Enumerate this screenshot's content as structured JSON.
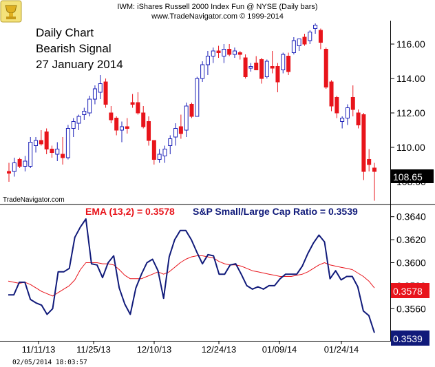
{
  "header": {
    "line1": "IWM:  iShares Russell 2000 Index Fun @ NYSE  (Daily bars)",
    "line2": "www.TradeNavigator.com © 1999-2014"
  },
  "notes": [
    "Daily Chart",
    "Bearish Signal",
    "27 January 2014"
  ],
  "watermark": "TradeNavigator.com",
  "timestamp": "02/05/2014  18:03:57",
  "colors": {
    "up": "#1a1fb8",
    "down": "#e8141b",
    "ratio_line": "#101a7a",
    "ema_line": "#e8141b"
  },
  "chart_data": [
    {
      "type": "candlestick",
      "title": "IWM:  iShares Russell 2000 Index Fun @ NYSE  (Daily bars)",
      "ylim": [
        106.8,
        117.2
      ],
      "yticks": [
        "116.00",
        "114.00",
        "112.00",
        "110.00",
        "108.00"
      ],
      "last_value": "108.65",
      "bars": [
        {
          "o": 108.6,
          "h": 109.1,
          "l": 108.0,
          "c": 108.5
        },
        {
          "o": 108.6,
          "h": 109.4,
          "l": 108.3,
          "c": 109.1
        },
        {
          "o": 109.3,
          "h": 109.4,
          "l": 108.8,
          "c": 108.9
        },
        {
          "o": 108.9,
          "h": 109.5,
          "l": 108.6,
          "c": 109.2
        },
        {
          "o": 108.9,
          "h": 110.6,
          "l": 108.8,
          "c": 110.3
        },
        {
          "o": 110.1,
          "h": 110.6,
          "l": 109.7,
          "c": 110.4
        },
        {
          "o": 110.4,
          "h": 111.0,
          "l": 110.1,
          "c": 110.2
        },
        {
          "o": 110.9,
          "h": 111.1,
          "l": 109.6,
          "c": 109.9
        },
        {
          "o": 109.9,
          "h": 110.1,
          "l": 109.4,
          "c": 109.7
        },
        {
          "o": 109.6,
          "h": 110.3,
          "l": 109.2,
          "c": 109.9
        },
        {
          "o": 109.6,
          "h": 110.6,
          "l": 109.0,
          "c": 109.4
        },
        {
          "o": 109.4,
          "h": 111.3,
          "l": 109.3,
          "c": 111.1
        },
        {
          "o": 111.1,
          "h": 111.7,
          "l": 110.6,
          "c": 111.5
        },
        {
          "o": 111.4,
          "h": 111.9,
          "l": 111.0,
          "c": 111.8
        },
        {
          "o": 111.9,
          "h": 112.3,
          "l": 111.6,
          "c": 112.1
        },
        {
          "o": 112.0,
          "h": 113.0,
          "l": 111.8,
          "c": 112.8
        },
        {
          "o": 112.8,
          "h": 113.6,
          "l": 112.5,
          "c": 113.4
        },
        {
          "o": 113.2,
          "h": 114.2,
          "l": 112.8,
          "c": 113.7
        },
        {
          "o": 113.8,
          "h": 114.0,
          "l": 112.3,
          "c": 112.5
        },
        {
          "o": 112.0,
          "h": 112.4,
          "l": 111.4,
          "c": 111.6
        },
        {
          "o": 111.7,
          "h": 111.8,
          "l": 110.7,
          "c": 111.0
        },
        {
          "o": 111.0,
          "h": 111.5,
          "l": 110.3,
          "c": 111.2
        },
        {
          "o": 111.2,
          "h": 111.7,
          "l": 110.8,
          "c": 111.1
        },
        {
          "o": 112.6,
          "h": 113.1,
          "l": 112.3,
          "c": 112.5
        },
        {
          "o": 112.6,
          "h": 113.2,
          "l": 111.9,
          "c": 112.0
        },
        {
          "o": 112.0,
          "h": 112.4,
          "l": 111.1,
          "c": 111.2
        },
        {
          "o": 111.5,
          "h": 111.8,
          "l": 110.1,
          "c": 110.4
        },
        {
          "o": 110.4,
          "h": 110.4,
          "l": 109.0,
          "c": 109.3
        },
        {
          "o": 109.3,
          "h": 109.9,
          "l": 109.1,
          "c": 109.6
        },
        {
          "o": 109.5,
          "h": 110.1,
          "l": 109.1,
          "c": 109.9
        },
        {
          "o": 110.1,
          "h": 110.7,
          "l": 109.6,
          "c": 110.5
        },
        {
          "o": 110.6,
          "h": 111.4,
          "l": 110.1,
          "c": 111.1
        },
        {
          "o": 111.2,
          "h": 111.9,
          "l": 110.5,
          "c": 110.8
        },
        {
          "o": 111.0,
          "h": 112.6,
          "l": 110.6,
          "c": 112.4
        },
        {
          "o": 112.5,
          "h": 112.6,
          "l": 111.7,
          "c": 111.8
        },
        {
          "o": 111.8,
          "h": 114.1,
          "l": 111.8,
          "c": 114.0
        },
        {
          "o": 114.0,
          "h": 115.0,
          "l": 113.8,
          "c": 114.8
        },
        {
          "o": 114.8,
          "h": 115.6,
          "l": 114.2,
          "c": 115.3
        },
        {
          "o": 115.3,
          "h": 115.8,
          "l": 114.9,
          "c": 115.6
        },
        {
          "o": 115.6,
          "h": 115.9,
          "l": 115.2,
          "c": 115.5
        },
        {
          "o": 115.3,
          "h": 116.0,
          "l": 114.9,
          "c": 115.7
        },
        {
          "o": 115.7,
          "h": 116.0,
          "l": 115.3,
          "c": 115.4
        },
        {
          "o": 115.4,
          "h": 115.8,
          "l": 115.2,
          "c": 115.6
        },
        {
          "o": 115.5,
          "h": 115.6,
          "l": 115.1,
          "c": 115.4
        },
        {
          "o": 115.2,
          "h": 115.4,
          "l": 114.0,
          "c": 114.1
        },
        {
          "o": 114.6,
          "h": 114.9,
          "l": 114.4,
          "c": 114.7
        },
        {
          "o": 114.9,
          "h": 115.3,
          "l": 114.5,
          "c": 114.5
        },
        {
          "o": 115.1,
          "h": 115.2,
          "l": 113.7,
          "c": 114.0
        },
        {
          "o": 114.1,
          "h": 115.1,
          "l": 114.0,
          "c": 115.0
        },
        {
          "o": 114.7,
          "h": 115.6,
          "l": 114.3,
          "c": 114.6
        },
        {
          "o": 114.7,
          "h": 114.9,
          "l": 113.2,
          "c": 113.8
        },
        {
          "o": 114.5,
          "h": 115.5,
          "l": 114.3,
          "c": 115.4
        },
        {
          "o": 115.3,
          "h": 115.5,
          "l": 114.2,
          "c": 114.4
        },
        {
          "o": 115.5,
          "h": 116.4,
          "l": 115.4,
          "c": 116.2
        },
        {
          "o": 115.9,
          "h": 116.3,
          "l": 115.6,
          "c": 116.3
        },
        {
          "o": 116.4,
          "h": 116.6,
          "l": 115.9,
          "c": 116.0
        },
        {
          "o": 116.2,
          "h": 116.8,
          "l": 116.0,
          "c": 116.7
        },
        {
          "o": 116.9,
          "h": 117.2,
          "l": 116.6,
          "c": 117.1
        },
        {
          "o": 116.8,
          "h": 116.9,
          "l": 115.7,
          "c": 116.1
        },
        {
          "o": 115.7,
          "h": 115.8,
          "l": 113.4,
          "c": 113.5
        },
        {
          "o": 113.8,
          "h": 113.9,
          "l": 112.1,
          "c": 112.4
        },
        {
          "o": 112.9,
          "h": 113.0,
          "l": 111.7,
          "c": 112.0
        },
        {
          "o": 111.5,
          "h": 111.8,
          "l": 111.1,
          "c": 111.7
        },
        {
          "o": 111.7,
          "h": 112.5,
          "l": 111.3,
          "c": 112.3
        },
        {
          "o": 112.9,
          "h": 113.6,
          "l": 111.8,
          "c": 112.2
        },
        {
          "o": 112.0,
          "h": 112.2,
          "l": 111.1,
          "c": 111.3
        },
        {
          "o": 111.9,
          "h": 112.0,
          "l": 108.1,
          "c": 108.6
        },
        {
          "o": 109.3,
          "h": 109.9,
          "l": 108.6,
          "c": 109.0
        },
        {
          "o": 108.8,
          "h": 109.1,
          "l": 106.9,
          "c": 108.6
        }
      ]
    },
    {
      "type": "line",
      "ylim": [
        0.3532,
        0.365
      ],
      "yticks": [
        "0.3640",
        "0.3620",
        "0.3600",
        "0.3580",
        "0.3560"
      ],
      "x_labels": [
        "11/11/13",
        "11/25/13",
        "12/10/13",
        "12/24/13",
        "01/09/14",
        "01/24/14"
      ],
      "series": [
        {
          "name": "S&P Small/Large Cap Ratio",
          "label": "S&P Small/Large Cap Ratio = 0.3539",
          "last_value": "0.3539",
          "values": [
            0.3572,
            0.3572,
            0.3583,
            0.3583,
            0.3568,
            0.3565,
            0.3563,
            0.3555,
            0.356,
            0.3592,
            0.3592,
            0.3595,
            0.3622,
            0.3631,
            0.3638,
            0.3599,
            0.3598,
            0.3587,
            0.36,
            0.3606,
            0.3578,
            0.3564,
            0.3555,
            0.3578,
            0.359,
            0.36,
            0.3603,
            0.3593,
            0.3569,
            0.3605,
            0.362,
            0.3628,
            0.3628,
            0.362,
            0.3609,
            0.3599,
            0.3607,
            0.3606,
            0.359,
            0.359,
            0.3598,
            0.3599,
            0.359,
            0.358,
            0.3577,
            0.3579,
            0.3577,
            0.358,
            0.358,
            0.3586,
            0.359,
            0.359,
            0.359,
            0.3597,
            0.3608,
            0.3617,
            0.3624,
            0.3618,
            0.3586,
            0.3593,
            0.3585,
            0.3588,
            0.3588,
            0.3579,
            0.3558,
            0.3554,
            0.3539
          ]
        },
        {
          "name": "EMA (13,2)",
          "label": "EMA (13,2) = 0.3578",
          "last_value": "0.3578",
          "values": [
            0.3584,
            0.3583,
            0.3582,
            0.3583,
            0.3581,
            0.3578,
            0.3575,
            0.3573,
            0.3571,
            0.3574,
            0.3577,
            0.358,
            0.3585,
            0.3594,
            0.36,
            0.36,
            0.36,
            0.3599,
            0.3599,
            0.3598,
            0.3594,
            0.3589,
            0.3586,
            0.3586,
            0.3586,
            0.3588,
            0.359,
            0.3592,
            0.359,
            0.3592,
            0.3596,
            0.36,
            0.3603,
            0.3605,
            0.3606,
            0.3606,
            0.3605,
            0.3604,
            0.3601,
            0.3599,
            0.3598,
            0.3598,
            0.3597,
            0.3595,
            0.3593,
            0.3592,
            0.3591,
            0.359,
            0.3589,
            0.3588,
            0.3588,
            0.3588,
            0.3589,
            0.359,
            0.3592,
            0.3595,
            0.3598,
            0.36,
            0.3598,
            0.3597,
            0.3596,
            0.3595,
            0.3594,
            0.3591,
            0.3588,
            0.3584,
            0.3578
          ]
        }
      ]
    }
  ]
}
